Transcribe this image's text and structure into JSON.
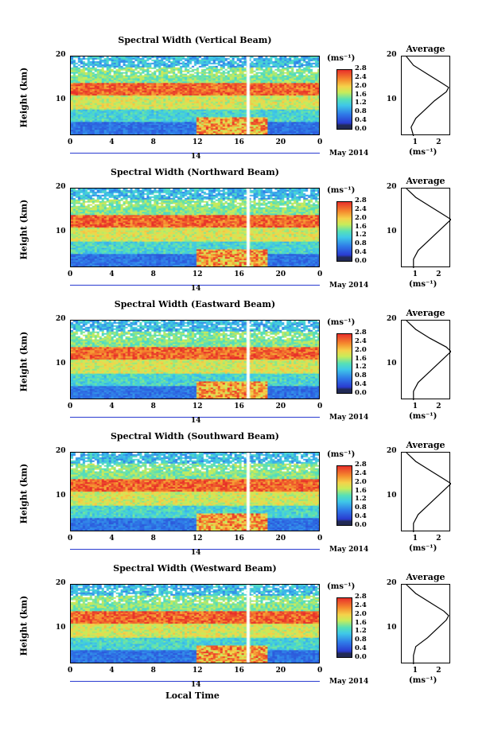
{
  "figure": {
    "x_label": "Local Time",
    "month_label": "May 2014",
    "date_label": "14",
    "units_label": "(ms⁻¹)",
    "avg_title": "Average",
    "avg_xlabel": "(ms⁻¹)",
    "y_label": "Height (km)"
  },
  "chart_data": [
    {
      "type": "heatmap",
      "title": "Spectral Width (Vertical Beam)",
      "xlabel": "Local Time",
      "ylabel": "Height (km)",
      "x_ticks": [
        "0",
        "4",
        "8",
        "12",
        "16",
        "20",
        "0"
      ],
      "y_ticks": [
        "10",
        "20"
      ],
      "xlim": [
        0,
        24
      ],
      "ylim": [
        2,
        20
      ],
      "colorbar": {
        "label": "(ms⁻¹)",
        "ticks": [
          "0.0",
          "0.4",
          "0.8",
          "1.2",
          "1.6",
          "2.0",
          "2.4",
          "2.8"
        ],
        "range": [
          0,
          2.8
        ]
      },
      "average_profile": {
        "title": "Average",
        "xlabel": "(ms⁻¹)",
        "x_ticks": [
          "1",
          "2"
        ],
        "y_ticks": [
          "10",
          "20"
        ],
        "xlim": [
          0.4,
          2.5
        ],
        "heights": [
          2,
          4,
          6,
          8,
          10,
          12,
          13,
          14,
          16,
          18,
          20
        ],
        "values": [
          0.9,
          0.8,
          1.0,
          1.4,
          1.8,
          2.3,
          2.4,
          2.1,
          1.5,
          0.9,
          0.6
        ]
      }
    },
    {
      "type": "heatmap",
      "title": "Spectral Width (Northward Beam)",
      "xlabel": "Local Time",
      "ylabel": "Height (km)",
      "x_ticks": [
        "0",
        "4",
        "8",
        "12",
        "16",
        "20",
        "0"
      ],
      "y_ticks": [
        "10",
        "20"
      ],
      "xlim": [
        0,
        24
      ],
      "ylim": [
        2,
        20
      ],
      "colorbar": {
        "label": "(ms⁻¹)",
        "ticks": [
          "0.0",
          "0.4",
          "0.8",
          "1.2",
          "1.6",
          "2.0",
          "2.4",
          "2.8"
        ],
        "range": [
          0,
          2.8
        ]
      },
      "average_profile": {
        "title": "Average",
        "xlabel": "(ms⁻¹)",
        "x_ticks": [
          "1",
          "2"
        ],
        "y_ticks": [
          "10",
          "20"
        ],
        "xlim": [
          0.4,
          2.5
        ],
        "heights": [
          2,
          4,
          6,
          8,
          10,
          12,
          13,
          14,
          16,
          18,
          20
        ],
        "values": [
          0.9,
          0.9,
          1.1,
          1.5,
          1.9,
          2.3,
          2.5,
          2.2,
          1.6,
          1.0,
          0.6
        ]
      }
    },
    {
      "type": "heatmap",
      "title": "Spectral Width (Eastward Beam)",
      "xlabel": "Local Time",
      "ylabel": "Height (km)",
      "x_ticks": [
        "0",
        "4",
        "8",
        "12",
        "16",
        "20",
        "0"
      ],
      "y_ticks": [
        "10",
        "20"
      ],
      "xlim": [
        0,
        24
      ],
      "ylim": [
        2,
        20
      ],
      "colorbar": {
        "label": "(ms⁻¹)",
        "ticks": [
          "0.0",
          "0.4",
          "0.8",
          "1.2",
          "1.6",
          "2.0",
          "2.4",
          "2.8"
        ],
        "range": [
          0,
          2.8
        ]
      },
      "average_profile": {
        "title": "Average",
        "xlabel": "(ms⁻¹)",
        "x_ticks": [
          "1",
          "2"
        ],
        "y_ticks": [
          "10",
          "20"
        ],
        "xlim": [
          0.4,
          2.5
        ],
        "heights": [
          2,
          4,
          6,
          8,
          10,
          12,
          13,
          14,
          16,
          18,
          20
        ],
        "values": [
          0.9,
          0.9,
          1.1,
          1.5,
          1.9,
          2.3,
          2.5,
          2.3,
          1.6,
          1.0,
          0.6
        ]
      }
    },
    {
      "type": "heatmap",
      "title": "Spectral Width (Southward Beam)",
      "xlabel": "Local Time",
      "ylabel": "Height (km)",
      "x_ticks": [
        "0",
        "4",
        "8",
        "12",
        "16",
        "20",
        "0"
      ],
      "y_ticks": [
        "10",
        "20"
      ],
      "xlim": [
        0,
        24
      ],
      "ylim": [
        2,
        20
      ],
      "colorbar": {
        "label": "(ms⁻¹)",
        "ticks": [
          "0.0",
          "0.4",
          "0.8",
          "1.2",
          "1.6",
          "2.0",
          "2.4",
          "2.8"
        ],
        "range": [
          0,
          2.8
        ]
      },
      "average_profile": {
        "title": "Average",
        "xlabel": "(ms⁻¹)",
        "x_ticks": [
          "1",
          "2"
        ],
        "y_ticks": [
          "10",
          "20"
        ],
        "xlim": [
          0.4,
          2.5
        ],
        "heights": [
          2,
          4,
          6,
          8,
          10,
          12,
          13,
          14,
          16,
          18,
          20
        ],
        "values": [
          0.9,
          0.9,
          1.1,
          1.5,
          1.9,
          2.3,
          2.5,
          2.2,
          1.6,
          1.0,
          0.6
        ]
      }
    },
    {
      "type": "heatmap",
      "title": "Spectral Width (Westward Beam)",
      "xlabel": "Local Time",
      "ylabel": "Height (km)",
      "x_ticks": [
        "0",
        "4",
        "8",
        "12",
        "16",
        "20",
        "0"
      ],
      "y_ticks": [
        "10",
        "20"
      ],
      "xlim": [
        0,
        24
      ],
      "ylim": [
        2,
        20
      ],
      "colorbar": {
        "label": "(ms⁻¹)",
        "ticks": [
          "0.0",
          "0.4",
          "0.8",
          "1.2",
          "1.6",
          "2.0",
          "2.4",
          "2.8"
        ],
        "range": [
          0,
          2.8
        ]
      },
      "average_profile": {
        "title": "Average",
        "xlabel": "(ms⁻¹)",
        "x_ticks": [
          "1",
          "2"
        ],
        "y_ticks": [
          "10",
          "20"
        ],
        "xlim": [
          0.4,
          2.5
        ],
        "heights": [
          2,
          4,
          6,
          8,
          10,
          12,
          13,
          14,
          16,
          18,
          20
        ],
        "values": [
          0.9,
          0.9,
          1.0,
          1.5,
          1.9,
          2.3,
          2.4,
          2.2,
          1.6,
          1.0,
          0.6
        ]
      }
    }
  ]
}
